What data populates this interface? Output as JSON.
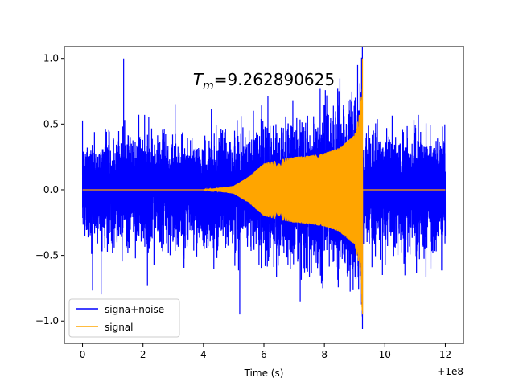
{
  "chart_data": {
    "type": "line",
    "xlabel": "Time (s)",
    "ylabel": "",
    "x_offset_label": "+1e8",
    "xlim": [
      -0.6,
      12.6
    ],
    "ylim": [
      -1.17,
      1.09
    ],
    "x_ticks": [
      0,
      2,
      4,
      6,
      8,
      10,
      12
    ],
    "x_tick_labels": [
      "0",
      "2",
      "4",
      "6",
      "8",
      "10",
      "12"
    ],
    "y_ticks": [
      -1.0,
      -0.5,
      0.0,
      0.5,
      1.0
    ],
    "y_tick_labels": [
      "−1.0",
      "−0.5",
      "0.0",
      "0.5",
      "1.0"
    ],
    "annotation": {
      "symbol": "T",
      "subscript": "m",
      "value_text": "=9.262890625",
      "x": 6.0,
      "y": 0.84
    },
    "legend_position": "lower left",
    "grid": false,
    "series": [
      {
        "name": "signa+noise",
        "color": "#0000ff",
        "x_start": 0,
        "x_end": 12,
        "noise_amplitude_typical": 0.5,
        "peak_max": 1.0,
        "peak_min": -1.06
      },
      {
        "name": "signal",
        "color": "#ffa500",
        "x_start": 0,
        "x_end": 12,
        "merger_time": 9.262890625,
        "envelope_onset": 4.0,
        "peak_amplitude": 1.0,
        "envelope_points": [
          [
            4.0,
            0.0
          ],
          [
            5.0,
            0.03
          ],
          [
            5.5,
            0.1
          ],
          [
            6.0,
            0.2
          ],
          [
            6.5,
            0.23
          ],
          [
            7.0,
            0.25
          ],
          [
            7.5,
            0.26
          ],
          [
            8.0,
            0.28
          ],
          [
            8.5,
            0.32
          ],
          [
            9.0,
            0.42
          ],
          [
            9.2,
            0.62
          ],
          [
            9.26,
            1.0
          ]
        ]
      }
    ]
  }
}
